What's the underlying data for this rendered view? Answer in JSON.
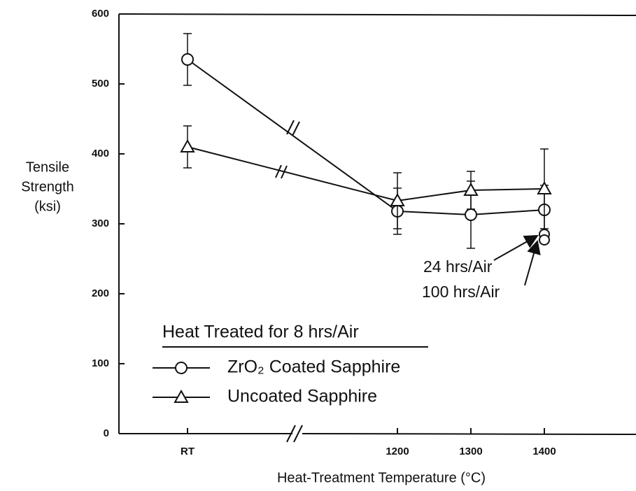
{
  "chart_data": {
    "type": "line",
    "x_label": "Heat-Treatment Temperature (°C)",
    "y_label": [
      "Tensile",
      "Strength",
      "(ksi)"
    ],
    "categories": [
      "RT",
      "1200",
      "1300",
      "1400"
    ],
    "ylim": [
      0,
      600
    ],
    "yticks": [
      0,
      100,
      200,
      300,
      400,
      500,
      600
    ],
    "legend_title": "Heat Treated for 8 hrs/Air",
    "legend": "lower left",
    "series": [
      {
        "name": "ZrO₂ Coated Sapphire",
        "marker": "circle",
        "color": "#111111",
        "values": [
          535,
          318,
          313,
          320
        ],
        "errors": [
          37,
          33,
          48,
          35
        ]
      },
      {
        "name": "Uncoated Sapphire",
        "marker": "triangle",
        "color": "#111111",
        "values": [
          410,
          333,
          348,
          350
        ],
        "errors": [
          30,
          40,
          27,
          57
        ]
      }
    ],
    "annotations": [
      {
        "text": "24 hrs/Air",
        "value": 285
      },
      {
        "text": "100 hrs/Air",
        "value": 277
      }
    ]
  }
}
